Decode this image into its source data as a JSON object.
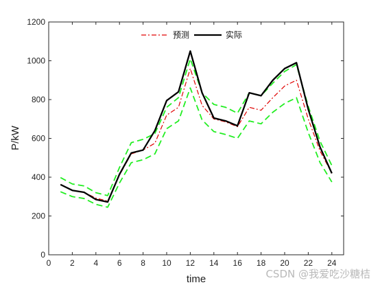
{
  "chart_data": {
    "type": "line",
    "xlabel": "time",
    "ylabel": "P/kW",
    "xlim": [
      0,
      25
    ],
    "ylim": [
      0,
      1200
    ],
    "xticks": [
      0,
      2,
      4,
      6,
      8,
      10,
      12,
      14,
      16,
      18,
      20,
      22,
      24
    ],
    "yticks": [
      0,
      200,
      400,
      600,
      800,
      1000,
      1200
    ],
    "grid": false,
    "legend_position": "top-center",
    "x": [
      1,
      2,
      3,
      4,
      5,
      6,
      7,
      8,
      9,
      10,
      11,
      12,
      13,
      14,
      15,
      16,
      17,
      18,
      19,
      20,
      21,
      22,
      23,
      24
    ],
    "series": [
      {
        "name": "预测",
        "style": "dash-dot",
        "color": "#e00000",
        "values": [
          362,
          332,
          322,
          292,
          277,
          410,
          520,
          540,
          575,
          720,
          760,
          960,
          770,
          700,
          685,
          660,
          760,
          745,
          810,
          870,
          900,
          700,
          535,
          420
        ]
      },
      {
        "name": "实际",
        "style": "solid",
        "color": "#000000",
        "values": [
          362,
          332,
          322,
          285,
          272,
          415,
          525,
          540,
          640,
          795,
          840,
          1050,
          835,
          705,
          690,
          665,
          835,
          820,
          900,
          960,
          990,
          750,
          555,
          420
        ]
      },
      {
        "name": "",
        "style": "dashed",
        "color": "#22ee22",
        "values": [
          398,
          365,
          355,
          320,
          305,
          450,
          578,
          595,
          625,
          760,
          810,
          1010,
          835,
          775,
          760,
          730,
          835,
          820,
          885,
          945,
          980,
          765,
          585,
          460
        ]
      },
      {
        "name": "",
        "style": "dashed",
        "color": "#22ee22",
        "values": [
          325,
          300,
          290,
          260,
          245,
          370,
          475,
          490,
          520,
          650,
          690,
          860,
          695,
          635,
          620,
          600,
          690,
          675,
          735,
          780,
          810,
          630,
          475,
          375
        ]
      }
    ]
  },
  "watermark": "CSDN @我爱吃沙糖桔"
}
